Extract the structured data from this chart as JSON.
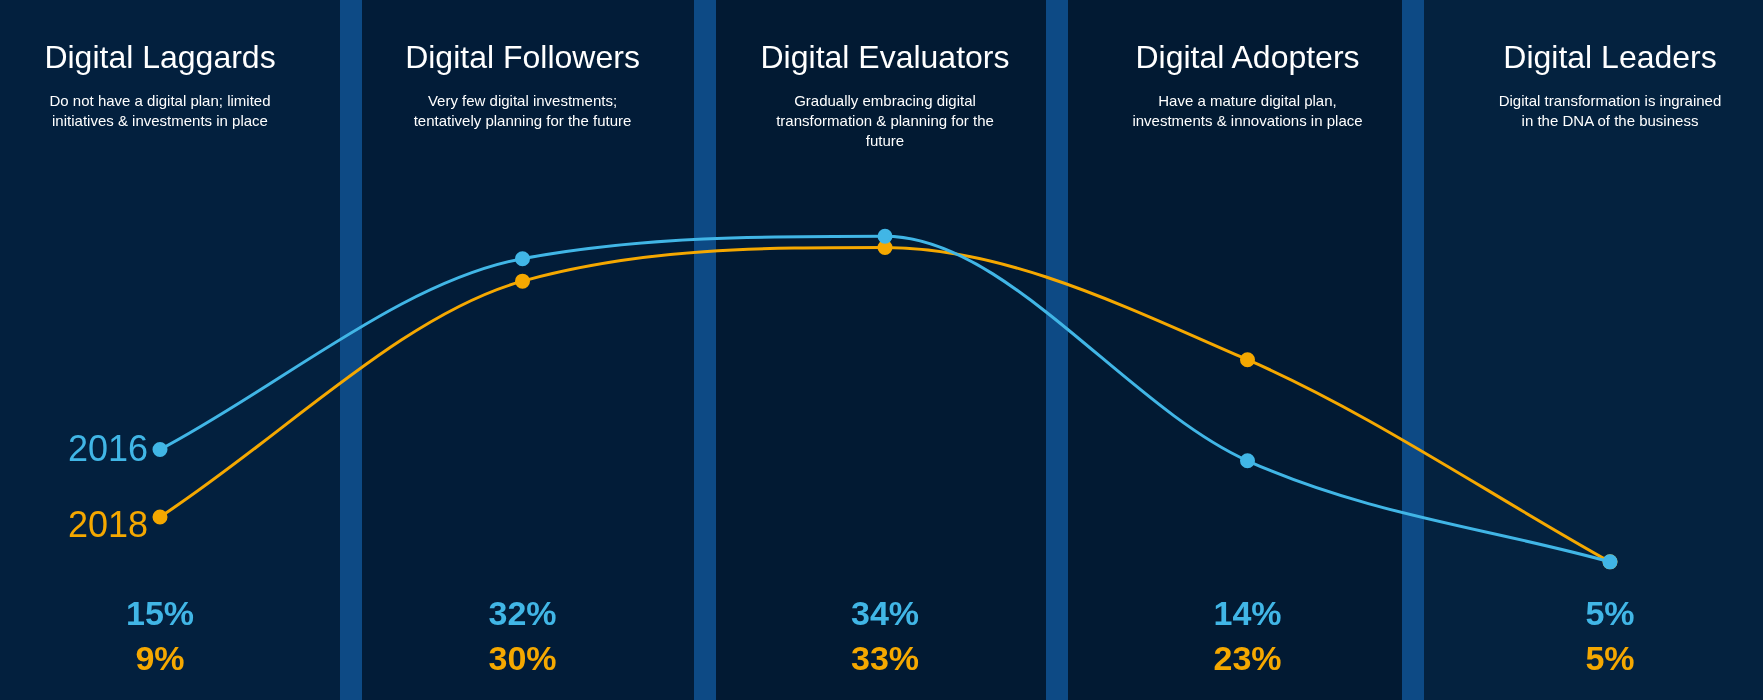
{
  "chart_data": {
    "type": "line",
    "categories": [
      "Digital Laggards",
      "Digital Followers",
      "Digital Evaluators",
      "Digital Adopters",
      "Digital Leaders"
    ],
    "series": [
      {
        "name": "2016",
        "color": "#41b6e6",
        "values": [
          15,
          32,
          34,
          14,
          5
        ],
        "value_labels": [
          "15%",
          "32%",
          "34%",
          "14%",
          "5%"
        ]
      },
      {
        "name": "2018",
        "color": "#f5a800",
        "values": [
          9,
          30,
          33,
          23,
          5
        ],
        "value_labels": [
          "9%",
          "30%",
          "33%",
          "23%",
          "5%"
        ]
      }
    ],
    "annotations": [
      "Do not have a digital plan; limited initiatives & investments in place",
      "Very few digital investments; tentatively planning for the future",
      "Gradually embracing digital transformation & planning for the future",
      "Have a mature digital plan, investments & innovations in place",
      "Digital transformation is ingrained in the DNA of the business"
    ],
    "legend": false,
    "marker": "circle",
    "line_style": "solid"
  }
}
